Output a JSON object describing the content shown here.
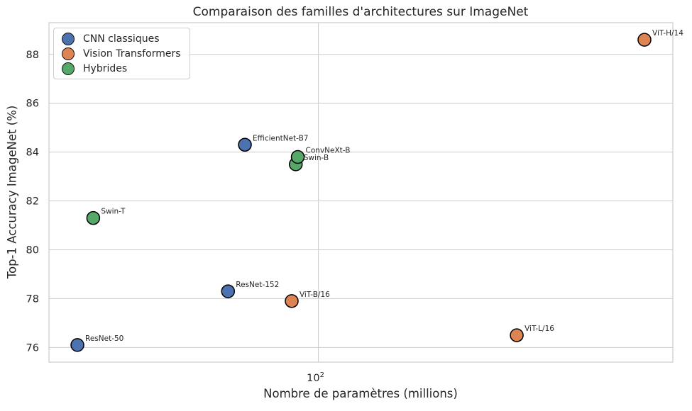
{
  "chart_data": {
    "type": "scatter",
    "title": "Comparaison des familles d'architectures sur ImageNet",
    "xlabel": "Nombre de paramètres (millions)",
    "ylabel": "Top-1 Accuracy ImageNet (%)",
    "x_scale": "log",
    "xlim": [
      21.8,
      742
    ],
    "ylim": [
      75.4,
      89.3
    ],
    "x_ticks": [
      {
        "value": 100,
        "base": "10",
        "exponent": "2"
      }
    ],
    "y_ticks": [
      76,
      78,
      80,
      82,
      84,
      86,
      88
    ],
    "grid": true,
    "legend_position": "upper-left",
    "series": [
      {
        "name": "CNN classiques",
        "color": "#4C72B0",
        "points": [
          {
            "label": "ResNet-50",
            "params_millions": 25.6,
            "accuracy": 76.1
          },
          {
            "label": "ResNet-152",
            "params_millions": 60,
            "accuracy": 78.3
          },
          {
            "label": "EfficientNet-B7",
            "params_millions": 66,
            "accuracy": 84.3
          }
        ]
      },
      {
        "name": "Vision Transformers",
        "color": "#DD8452",
        "points": [
          {
            "label": "ViT-B/16",
            "params_millions": 86,
            "accuracy": 77.9
          },
          {
            "label": "ViT-L/16",
            "params_millions": 307,
            "accuracy": 76.5
          },
          {
            "label": "ViT-H/14",
            "params_millions": 632,
            "accuracy": 88.6
          }
        ]
      },
      {
        "name": "Hybrides",
        "color": "#55A868",
        "points": [
          {
            "label": "Swin-T",
            "params_millions": 28,
            "accuracy": 81.3
          },
          {
            "label": "Swin-B",
            "params_millions": 88,
            "accuracy": 83.5
          },
          {
            "label": "ConvNeXt-B",
            "params_millions": 89,
            "accuracy": 83.8
          }
        ]
      }
    ],
    "style": {
      "background": "#ffffff",
      "text_color": "#262626",
      "grid_color": "#cccccc",
      "axes_edge_color": "#cccccc",
      "marker_edge_color": "#000000"
    }
  }
}
